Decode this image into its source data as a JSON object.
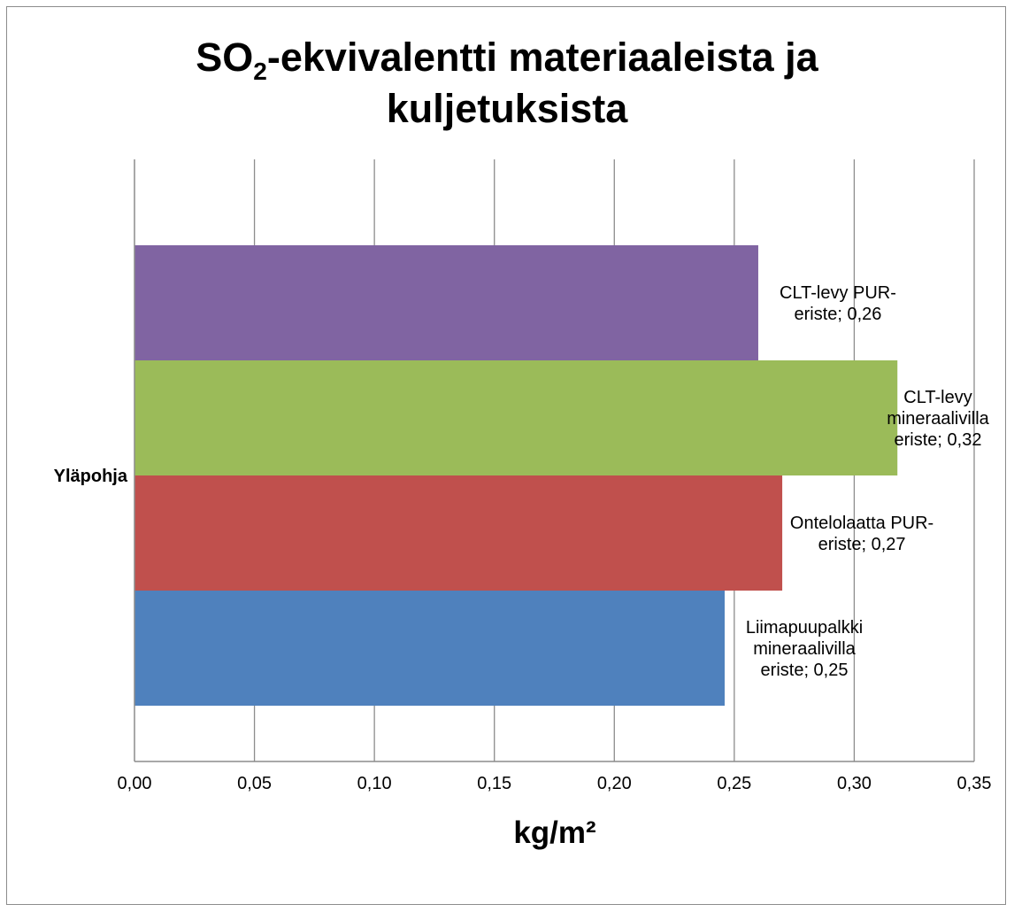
{
  "chart_data": {
    "type": "bar",
    "orientation": "horizontal",
    "title": {
      "prefix": "SO",
      "subscript": "2",
      "rest": "-ekvivalentti materiaaleista ja",
      "line2": "kuljetuksista"
    },
    "xlabel": "kg/m²",
    "ylabel": "",
    "categories": [
      "Yläpohja"
    ],
    "xlim": [
      0,
      0.35
    ],
    "x_ticks": [
      0,
      0.05,
      0.1,
      0.15,
      0.2,
      0.25,
      0.3,
      0.35
    ],
    "x_tick_labels": [
      "0,00",
      "0,05",
      "0,10",
      "0,15",
      "0,20",
      "0,25",
      "0,30",
      "0,35"
    ],
    "grid": "vertical",
    "legend": "none",
    "series": [
      {
        "name": "Liimapuupalkki mineraalivilla eriste",
        "values": [
          0.246
        ],
        "color": "#4F81BD",
        "data_label": [
          "Liimapuupalkki",
          "mineraalivilla",
          "eriste; 0,25"
        ]
      },
      {
        "name": "Ontelolaatta PUR-eriste",
        "values": [
          0.27
        ],
        "color": "#C0504D",
        "data_label": [
          "Ontelolaatta PUR-",
          "eriste; 0,27"
        ]
      },
      {
        "name": "CLT-levy mineraalivilla eriste",
        "values": [
          0.318
        ],
        "color": "#9BBB59",
        "data_label": [
          "CLT-levy",
          "mineraalivilla",
          "eriste; 0,32"
        ]
      },
      {
        "name": "CLT-levy PUR-eriste",
        "values": [
          0.26
        ],
        "color": "#8064A2",
        "data_label": [
          "CLT-levy PUR-",
          "eriste; 0,26"
        ]
      }
    ]
  }
}
